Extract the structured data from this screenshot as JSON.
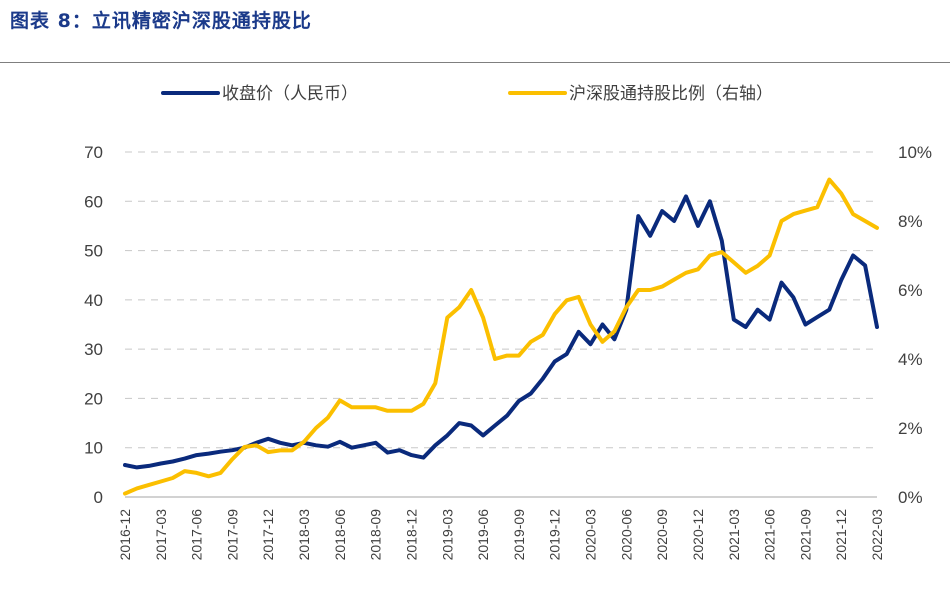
{
  "figure_title": "图表 8：立讯精密沪深股通持股比",
  "chart_data": {
    "type": "line",
    "title": "",
    "legend": [
      {
        "name": "收盘价（人民币）",
        "color": "#0a2a7c"
      },
      {
        "name": "沪深股通持股比例（右轴）",
        "color": "#fbbf00"
      }
    ],
    "legend_placement": "top",
    "grid": true,
    "y_left": {
      "ticks": [
        "0",
        "10",
        "20",
        "30",
        "40",
        "50",
        "60",
        "70"
      ],
      "lim": [
        0,
        70
      ]
    },
    "y_right": {
      "ticks": [
        "0%",
        "2%",
        "4%",
        "6%",
        "8%",
        "10%"
      ],
      "lim": [
        0,
        10
      ]
    },
    "x_ticks": [
      "2016-12",
      "2017-03",
      "2017-06",
      "2017-09",
      "2017-12",
      "2018-03",
      "2018-06",
      "2018-09",
      "2018-12",
      "2019-03",
      "2019-06",
      "2019-09",
      "2019-12",
      "2020-03",
      "2020-06",
      "2020-09",
      "2020-12",
      "2021-03",
      "2021-06",
      "2021-09",
      "2021-12",
      "2022-03"
    ],
    "x_range": [
      "2016-12",
      "2022-03"
    ],
    "series": [
      {
        "name": "收盘价（人民币）",
        "axis": "left",
        "color": "#0a2a7c",
        "points": [
          [
            "2016-12",
            6.5
          ],
          [
            "2017-01",
            6.0
          ],
          [
            "2017-02",
            6.3
          ],
          [
            "2017-03",
            6.8
          ],
          [
            "2017-04",
            7.2
          ],
          [
            "2017-05",
            7.8
          ],
          [
            "2017-06",
            8.5
          ],
          [
            "2017-07",
            8.8
          ],
          [
            "2017-08",
            9.2
          ],
          [
            "2017-09",
            9.5
          ],
          [
            "2017-10",
            10.0
          ],
          [
            "2017-11",
            11.0
          ],
          [
            "2017-12",
            11.8
          ],
          [
            "2018-01",
            11.0
          ],
          [
            "2018-02",
            10.5
          ],
          [
            "2018-03",
            11.0
          ],
          [
            "2018-04",
            10.5
          ],
          [
            "2018-05",
            10.2
          ],
          [
            "2018-06",
            11.2
          ],
          [
            "2018-07",
            10.0
          ],
          [
            "2018-08",
            10.5
          ],
          [
            "2018-09",
            11.0
          ],
          [
            "2018-10",
            9.0
          ],
          [
            "2018-11",
            9.5
          ],
          [
            "2018-12",
            8.5
          ],
          [
            "2019-01",
            8.0
          ],
          [
            "2019-02",
            10.5
          ],
          [
            "2019-03",
            12.5
          ],
          [
            "2019-04",
            15.0
          ],
          [
            "2019-05",
            14.5
          ],
          [
            "2019-06",
            12.5
          ],
          [
            "2019-07",
            14.5
          ],
          [
            "2019-08",
            16.5
          ],
          [
            "2019-09",
            19.5
          ],
          [
            "2019-10",
            21.0
          ],
          [
            "2019-11",
            24.0
          ],
          [
            "2019-12",
            27.5
          ],
          [
            "2020-01",
            29.0
          ],
          [
            "2020-02",
            33.5
          ],
          [
            "2020-03",
            31.0
          ],
          [
            "2020-04",
            35.0
          ],
          [
            "2020-05",
            32.0
          ],
          [
            "2020-06",
            38.0
          ],
          [
            "2020-07",
            57.0
          ],
          [
            "2020-08",
            53.0
          ],
          [
            "2020-09",
            58.0
          ],
          [
            "2020-10",
            56.0
          ],
          [
            "2020-11",
            61.0
          ],
          [
            "2020-12",
            55.0
          ],
          [
            "2021-01",
            60.0
          ],
          [
            "2021-02",
            52.0
          ],
          [
            "2021-03",
            36.0
          ],
          [
            "2021-04",
            34.5
          ],
          [
            "2021-05",
            38.0
          ],
          [
            "2021-06",
            36.0
          ],
          [
            "2021-07",
            43.5
          ],
          [
            "2021-08",
            40.5
          ],
          [
            "2021-09",
            35.0
          ],
          [
            "2021-10",
            36.5
          ],
          [
            "2021-11",
            38.0
          ],
          [
            "2021-12",
            44.0
          ],
          [
            "2022-01",
            49.0
          ],
          [
            "2022-02",
            47.0
          ],
          [
            "2022-03",
            34.5
          ]
        ]
      },
      {
        "name": "沪深股通持股比例（右轴）",
        "axis": "right",
        "color": "#fbbf00",
        "points": [
          [
            "2016-12",
            0.1
          ],
          [
            "2017-01",
            0.25
          ],
          [
            "2017-02",
            0.35
          ],
          [
            "2017-03",
            0.45
          ],
          [
            "2017-04",
            0.55
          ],
          [
            "2017-05",
            0.75
          ],
          [
            "2017-06",
            0.7
          ],
          [
            "2017-07",
            0.6
          ],
          [
            "2017-08",
            0.7
          ],
          [
            "2017-09",
            1.1
          ],
          [
            "2017-10",
            1.45
          ],
          [
            "2017-11",
            1.5
          ],
          [
            "2017-12",
            1.3
          ],
          [
            "2018-01",
            1.35
          ],
          [
            "2018-02",
            1.35
          ],
          [
            "2018-03",
            1.6
          ],
          [
            "2018-04",
            2.0
          ],
          [
            "2018-05",
            2.3
          ],
          [
            "2018-06",
            2.8
          ],
          [
            "2018-07",
            2.6
          ],
          [
            "2018-08",
            2.6
          ],
          [
            "2018-09",
            2.6
          ],
          [
            "2018-10",
            2.5
          ],
          [
            "2018-11",
            2.5
          ],
          [
            "2018-12",
            2.5
          ],
          [
            "2019-01",
            2.7
          ],
          [
            "2019-02",
            3.3
          ],
          [
            "2019-03",
            5.2
          ],
          [
            "2019-04",
            5.5
          ],
          [
            "2019-05",
            6.0
          ],
          [
            "2019-06",
            5.2
          ],
          [
            "2019-07",
            4.0
          ],
          [
            "2019-08",
            4.1
          ],
          [
            "2019-09",
            4.1
          ],
          [
            "2019-10",
            4.5
          ],
          [
            "2019-11",
            4.7
          ],
          [
            "2019-12",
            5.3
          ],
          [
            "2020-01",
            5.7
          ],
          [
            "2020-02",
            5.8
          ],
          [
            "2020-03",
            5.0
          ],
          [
            "2020-04",
            4.5
          ],
          [
            "2020-05",
            4.8
          ],
          [
            "2020-06",
            5.5
          ],
          [
            "2020-07",
            6.0
          ],
          [
            "2020-08",
            6.0
          ],
          [
            "2020-09",
            6.1
          ],
          [
            "2020-10",
            6.3
          ],
          [
            "2020-11",
            6.5
          ],
          [
            "2020-12",
            6.6
          ],
          [
            "2021-01",
            7.0
          ],
          [
            "2021-02",
            7.1
          ],
          [
            "2021-03",
            6.8
          ],
          [
            "2021-04",
            6.5
          ],
          [
            "2021-05",
            6.7
          ],
          [
            "2021-06",
            7.0
          ],
          [
            "2021-07",
            8.0
          ],
          [
            "2021-08",
            8.2
          ],
          [
            "2021-09",
            8.3
          ],
          [
            "2021-10",
            8.4
          ],
          [
            "2021-11",
            9.2
          ],
          [
            "2021-12",
            8.8
          ],
          [
            "2022-01",
            8.2
          ],
          [
            "2022-02",
            8.0
          ],
          [
            "2022-03",
            7.8
          ]
        ]
      }
    ]
  }
}
